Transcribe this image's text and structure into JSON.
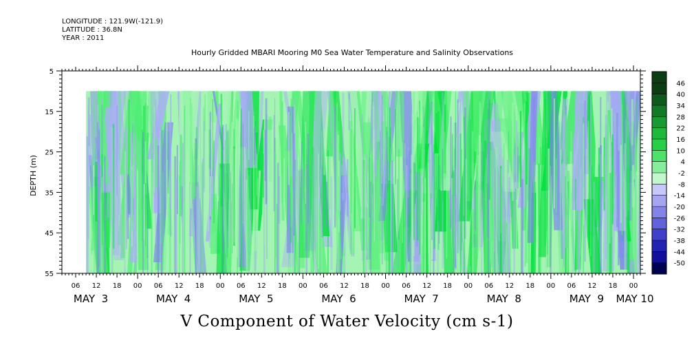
{
  "header": {
    "longitude": "LONGITUDE : 121.9W(-121.9)",
    "latitude": "LATITUDE : 36.8N",
    "year": "YEAR : 2011"
  },
  "chart_data": {
    "type": "heatmap",
    "title": "Hourly Gridded MBARI Mooring M0 Sea Water Temperature and Salinity Observations",
    "variable_title": "V Component of Water Velocity (cm s-1)",
    "ylabel": "DEPTH (m)",
    "y_ticks": [
      "5",
      "15",
      "25",
      "35",
      "45",
      "55"
    ],
    "y_range": [
      5,
      55
    ],
    "y_data_range": [
      10,
      55
    ],
    "x_hour_ticks": [
      "06",
      "12",
      "18",
      "00",
      "06",
      "12",
      "18",
      "00",
      "06",
      "12",
      "18",
      "00",
      "06",
      "12",
      "18",
      "00",
      "06",
      "12",
      "18",
      "00",
      "06",
      "12",
      "18",
      "00",
      "06",
      "12",
      "18",
      "00"
    ],
    "x_day_labels": [
      "MAY  3",
      "MAY  4",
      "MAY  5",
      "MAY  6",
      "MAY  7",
      "MAY  8",
      "MAY  9",
      "MAY 10"
    ],
    "x_range": [
      "2011-05-03 02:00",
      "2011-05-10 02:00"
    ],
    "x_data_start": "2011-05-03 09:00",
    "x_data_end": "2011-05-10 00:00",
    "colorbar_labels": [
      "46",
      "40",
      "34",
      "28",
      "22",
      "16",
      "10",
      "4",
      "-2",
      "-8",
      "-14",
      "-20",
      "-26",
      "-32",
      "-38",
      "-44",
      "-50"
    ],
    "colorbar_range": [
      -50,
      49
    ],
    "colorbar_colors": [
      "#0a3d12",
      "#0e5a1c",
      "#127a26",
      "#189a30",
      "#1eb83a",
      "#26d044",
      "#4ee26a",
      "#86ee9a",
      "#c2f6cc",
      "#c8c8f8",
      "#a6a6f0",
      "#8484e8",
      "#6262dc",
      "#4040cc",
      "#2222b4",
      "#10109a",
      "#000070"
    ],
    "colorbar_top_color": "#0a3d12",
    "colorbar_bottom_color": "#000050",
    "colors": {
      "strong_positive": "#00e03a",
      "positive": "#5af07a",
      "weak_positive": "#a6f4b4",
      "weak_negative": "#aab0f4",
      "negative": "#7f86ec"
    }
  }
}
